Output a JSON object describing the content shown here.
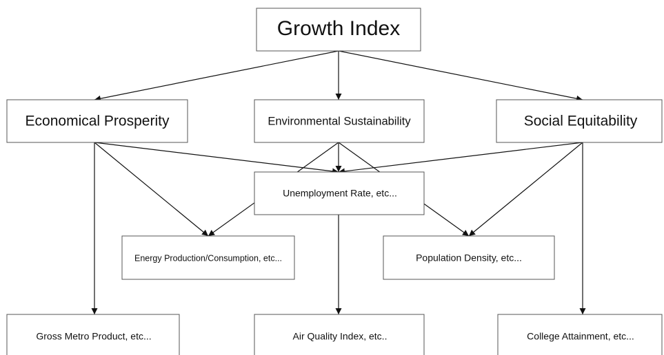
{
  "nodes": [
    {
      "label": "Growth Index"
    },
    {
      "label": "Economical Prosperity"
    },
    {
      "label": "Environmental Sustainability"
    },
    {
      "label": "Social Equitability"
    },
    {
      "label": "Unemployment Rate, etc..."
    },
    {
      "label": "Energy Production/Consumption, etc..."
    },
    {
      "label": "Population Density, etc..."
    },
    {
      "label": "Gross Metro Product, etc..."
    },
    {
      "label": "Air Quality Index, etc.."
    },
    {
      "label": "College Attainment, etc..."
    }
  ]
}
